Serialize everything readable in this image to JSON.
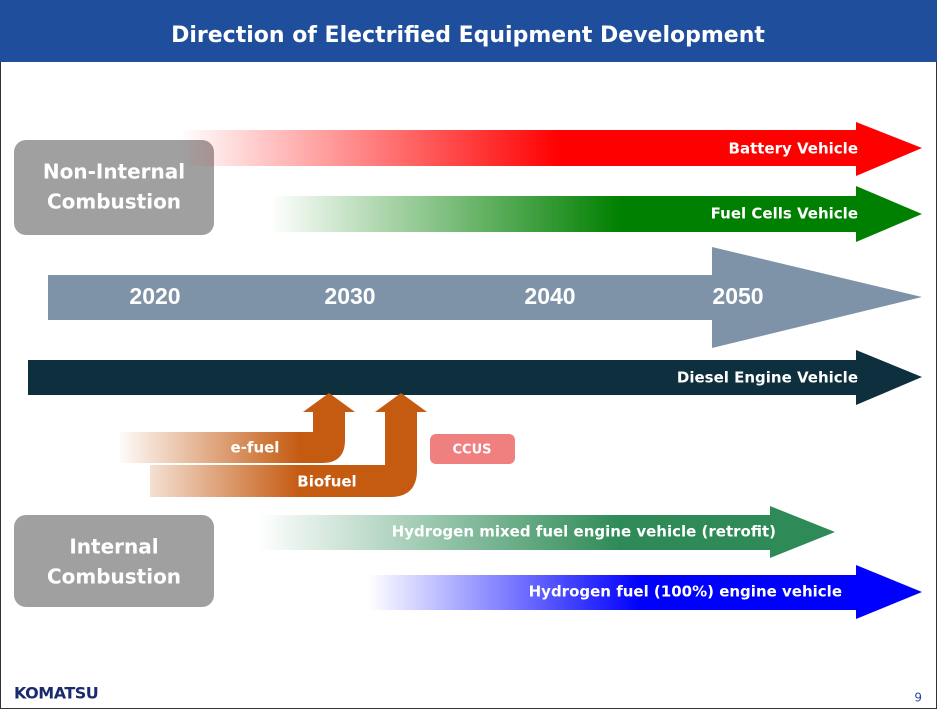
{
  "header": {
    "title": "Direction of Electrified Equipment Development"
  },
  "groups": [
    {
      "lines": [
        "Non-Internal",
        "Combustion"
      ]
    },
    {
      "lines": [
        "Internal",
        "Combustion"
      ]
    }
  ],
  "timeline": {
    "years": [
      "2020",
      "2030",
      "2040",
      "2050"
    ]
  },
  "arrows": {
    "battery": "Battery Vehicle",
    "fuel_cells": "Fuel Cells Vehicle",
    "diesel": "Diesel Engine Vehicle",
    "e_fuel": "e-fuel",
    "biofuel": "Biofuel",
    "ccus": "CCUS",
    "hydrogen_mixed": "Hydrogen mixed fuel engine vehicle (retrofit)",
    "hydrogen_full": "Hydrogen fuel (100%) engine vehicle"
  },
  "footer": {
    "logo": "KOMATSU",
    "page": "9"
  }
}
